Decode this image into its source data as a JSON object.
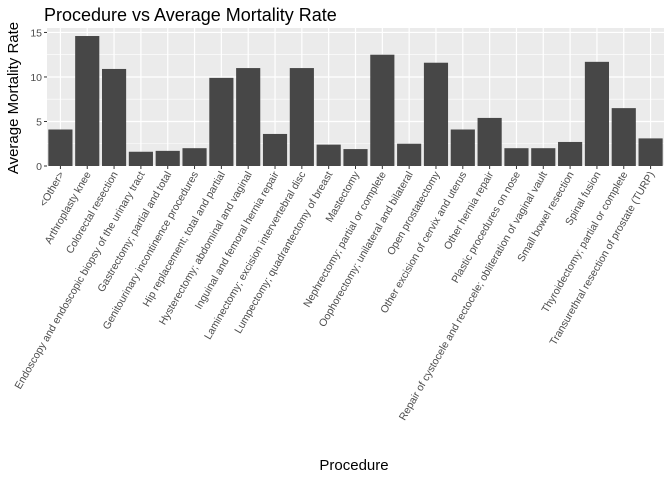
{
  "chart_data": {
    "type": "bar",
    "title": "Procedure vs Average Mortality Rate",
    "xlabel": "Procedure",
    "ylabel": "Average Mortality Rate",
    "ylim": [
      0,
      15.5
    ],
    "yticks": [
      "0",
      "5",
      "10",
      "15"
    ],
    "grid": true,
    "colors": {
      "bar": "#474747",
      "panel": "#ebebeb",
      "grid": "#ffffff",
      "tick_text": "#4d4d4d"
    },
    "categories": [
      "<Other>",
      "Arthroplasty knee",
      "Colorectal resection",
      "Endoscopy and endoscopic biopsy of the urinary tract",
      "Gastrectomy; partial and total",
      "Genitourinary incontinence procedures",
      "Hip replacement; total and partial",
      "Hysterectomy; abdominal and vaginal",
      "Inguinal and femoral hernia repair",
      "Laminectomy; excision intervertebral disc",
      "Lumpectomy; quadrantectomy of breast",
      "Mastectomy",
      "Nephrectomy; partial or complete",
      "Oophorectomy; unilateral and bilateral",
      "Open prostatectomy",
      "Other excision of cervix and uterus",
      "Other hernia repair",
      "Plastic procedures on nose",
      "Repair of cystocele and rectocele; obliteration of vaginal vault",
      "Small bowel resection",
      "Spinal fusion",
      "Thyroidectomy; partial or complete",
      "Transurethral resection of prostate (TURP)"
    ],
    "values": [
      4.1,
      14.6,
      10.9,
      1.6,
      1.7,
      2.0,
      9.9,
      11.0,
      3.6,
      11.0,
      2.4,
      1.9,
      12.5,
      2.5,
      11.6,
      4.1,
      5.4,
      2.0,
      2.0,
      2.7,
      11.7,
      6.5,
      3.1
    ]
  }
}
